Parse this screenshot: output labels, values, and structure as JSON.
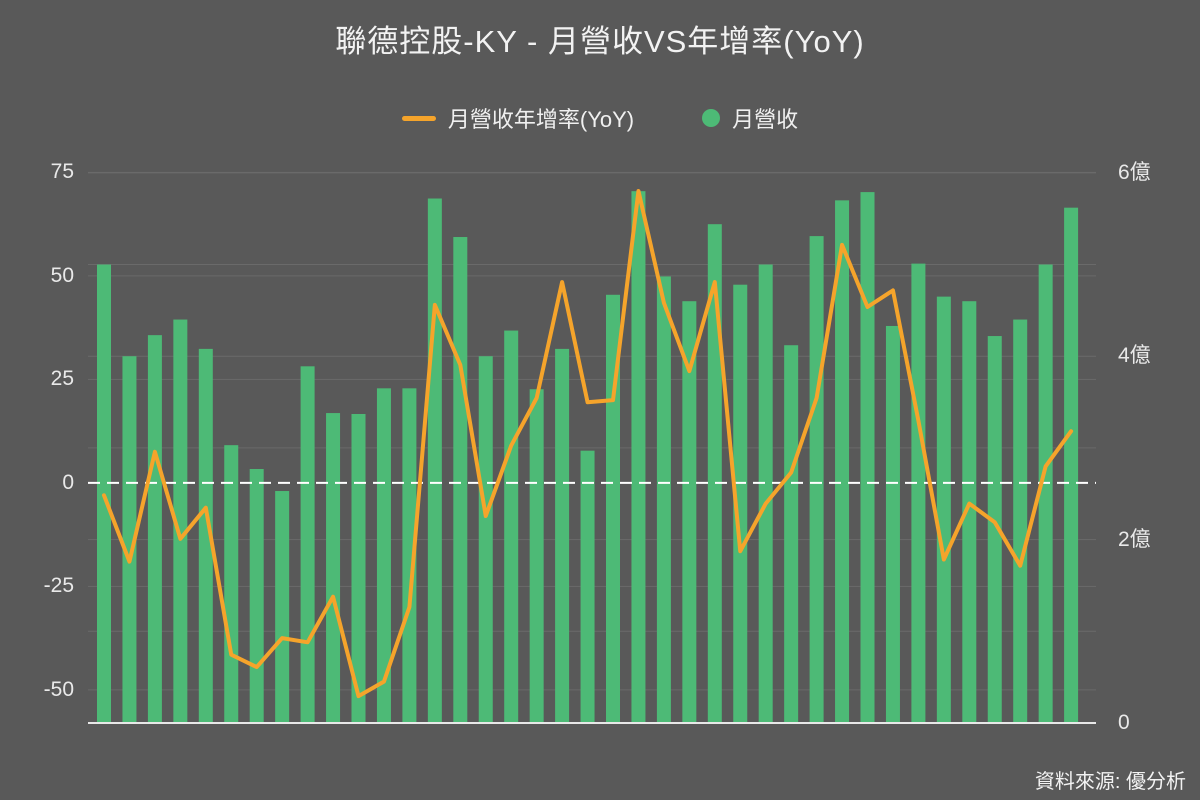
{
  "title": "聯德控股-KY - 月營收VS年增率(YoY)",
  "legend": {
    "items": [
      {
        "label": "月營收年增率(YoY)",
        "swatch": "line",
        "color": "#f5a42b"
      },
      {
        "label": "月營收",
        "swatch": "dot",
        "color": "#4dba76"
      }
    ]
  },
  "source": "資料來源: 優分析",
  "colors": {
    "background": "#595959",
    "bar": "#4dba76",
    "line": "#f5a42b",
    "zero_line": "#ffffff",
    "grid": "#6a6a6a",
    "axis_line": "#e8e8e8",
    "text": "#f0f0f0"
  },
  "chart_data": {
    "type": "bar+line combo",
    "title": "聯德控股-KY - 月營收VS年增率(YoY)",
    "n_points": 39,
    "x_axis": {
      "labels_visible": false,
      "note": "39 consecutive months, no tick labels shown"
    },
    "series": [
      {
        "name": "月營收",
        "type": "bar",
        "axis": "right",
        "unit": "億",
        "values": [
          5.0,
          4.0,
          4.23,
          4.4,
          4.08,
          3.03,
          2.77,
          2.53,
          3.89,
          3.38,
          3.37,
          3.65,
          3.65,
          5.72,
          5.3,
          4.0,
          4.28,
          3.64,
          4.08,
          2.97,
          4.67,
          5.8,
          4.87,
          4.6,
          5.44,
          4.78,
          5.0,
          4.12,
          5.31,
          5.7,
          5.79,
          4.33,
          5.01,
          4.65,
          4.6,
          4.22,
          4.4,
          5.0,
          5.62
        ]
      },
      {
        "name": "月營收年增率(YoY)",
        "type": "line",
        "axis": "left",
        "unit": "%",
        "values": [
          -3,
          -19,
          7.5,
          -13.5,
          -6,
          -41.5,
          -44.5,
          -37.5,
          -38.5,
          -27.5,
          -51.5,
          -48,
          -30,
          43,
          28.5,
          -8,
          9,
          20.5,
          48.5,
          19.5,
          20,
          70.5,
          43.5,
          27,
          48.5,
          -16.5,
          -5,
          2.5,
          20.5,
          57.5,
          42.5,
          46.5,
          15,
          -18.5,
          -5,
          -9.5,
          -20,
          4,
          12.5
        ]
      }
    ],
    "left_axis": {
      "unit": "%",
      "tick_labels": [
        "75",
        "50",
        "25",
        "0",
        "-25",
        "-50"
      ],
      "tick_values": [
        75,
        50,
        25,
        0,
        -25,
        -50
      ],
      "range": [
        -58,
        78
      ]
    },
    "right_axis": {
      "unit": "億",
      "tick_labels": [
        "6億",
        "4億",
        "2億",
        "0"
      ],
      "tick_values": [
        6,
        4,
        2,
        0
      ],
      "gridline_values": [
        1,
        2,
        3,
        4,
        5,
        6
      ],
      "range": [
        0,
        6.14
      ]
    },
    "grid": true,
    "zero_line": "white dashed at left-axis 0",
    "legend_position": "top-center"
  }
}
